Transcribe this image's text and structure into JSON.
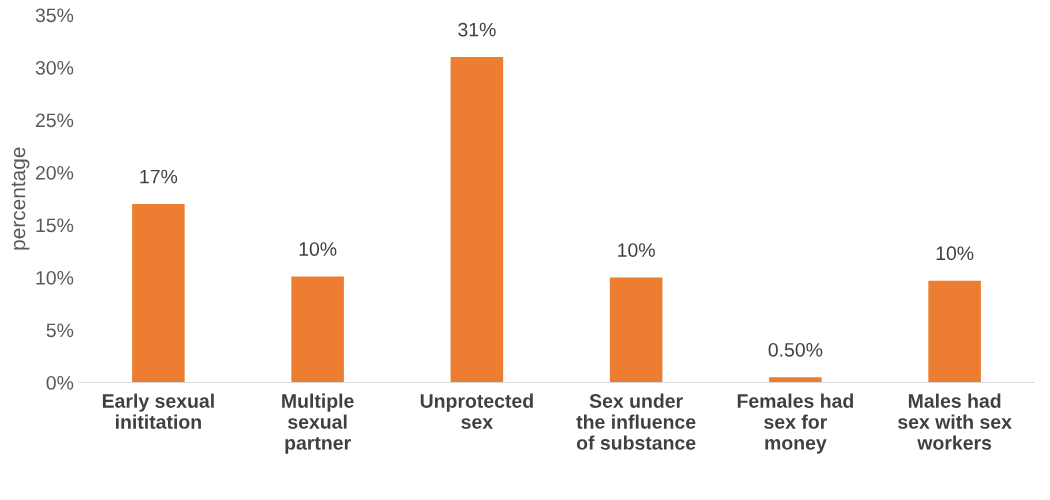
{
  "chart_data": {
    "type": "bar",
    "ylabel": "percentage",
    "categories": [
      "Early sexual\ninititation",
      "Multiple\nsexual\npartner",
      "Unprotected\nsex",
      "Sex under\nthe influence\nof substance",
      "Females had\nsex for\nmoney",
      "Males had\nsex with sex\nworkers"
    ],
    "values": [
      17,
      10.1,
      31,
      10,
      0.5,
      9.7
    ],
    "value_labels": [
      "17%",
      "10%",
      "31%",
      "10%",
      "0.50%",
      "10%"
    ],
    "color": "#ed7d31",
    "ylim": [
      0,
      35
    ],
    "yticks": [
      {
        "value": 0,
        "label": "0%"
      },
      {
        "value": 5,
        "label": "5%"
      },
      {
        "value": 10,
        "label": "10%"
      },
      {
        "value": 15,
        "label": "15%"
      },
      {
        "value": 20,
        "label": "20%"
      },
      {
        "value": 25,
        "label": "25%"
      },
      {
        "value": 30,
        "label": "30%"
      },
      {
        "value": 35,
        "label": "35%"
      }
    ],
    "grid": false,
    "legend": false
  }
}
